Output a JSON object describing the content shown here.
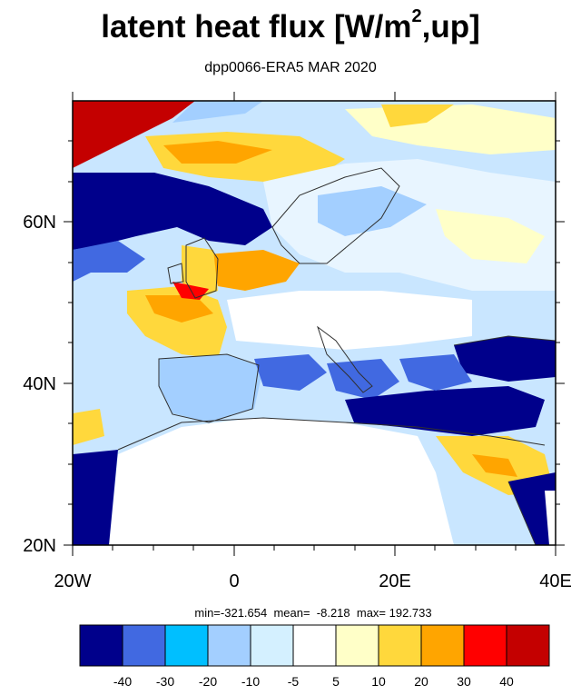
{
  "title_main": "latent heat flux [W/m",
  "title_sup": "2",
  "title_end": ",up]",
  "subtitle": "dpp0066-ERA5  MAR 2020",
  "stats": "min=-321.654  mean=  -8.218  max= 192.733",
  "map": {
    "lon_range": [
      -20,
      40
    ],
    "lat_range": [
      20,
      75
    ],
    "lat_tick_labels": [
      "60N",
      "40N",
      "20N"
    ],
    "lon_tick_labels": [
      "20W",
      "0",
      "20E",
      "40E"
    ]
  },
  "colorbar": {
    "colors": [
      "#00008b",
      "#4169e1",
      "#00bfff",
      "#a3cfff",
      "#d4f0ff",
      "#ffffff",
      "#ffffc8",
      "#ffd83c",
      "#ffa500",
      "#ff0000",
      "#c40000"
    ],
    "labels": [
      "-40",
      "-30",
      "-20",
      "-10",
      "-5",
      "5",
      "10",
      "20",
      "30",
      "40"
    ]
  },
  "colors": {
    "frame": "#000000",
    "coast": "#303030"
  }
}
